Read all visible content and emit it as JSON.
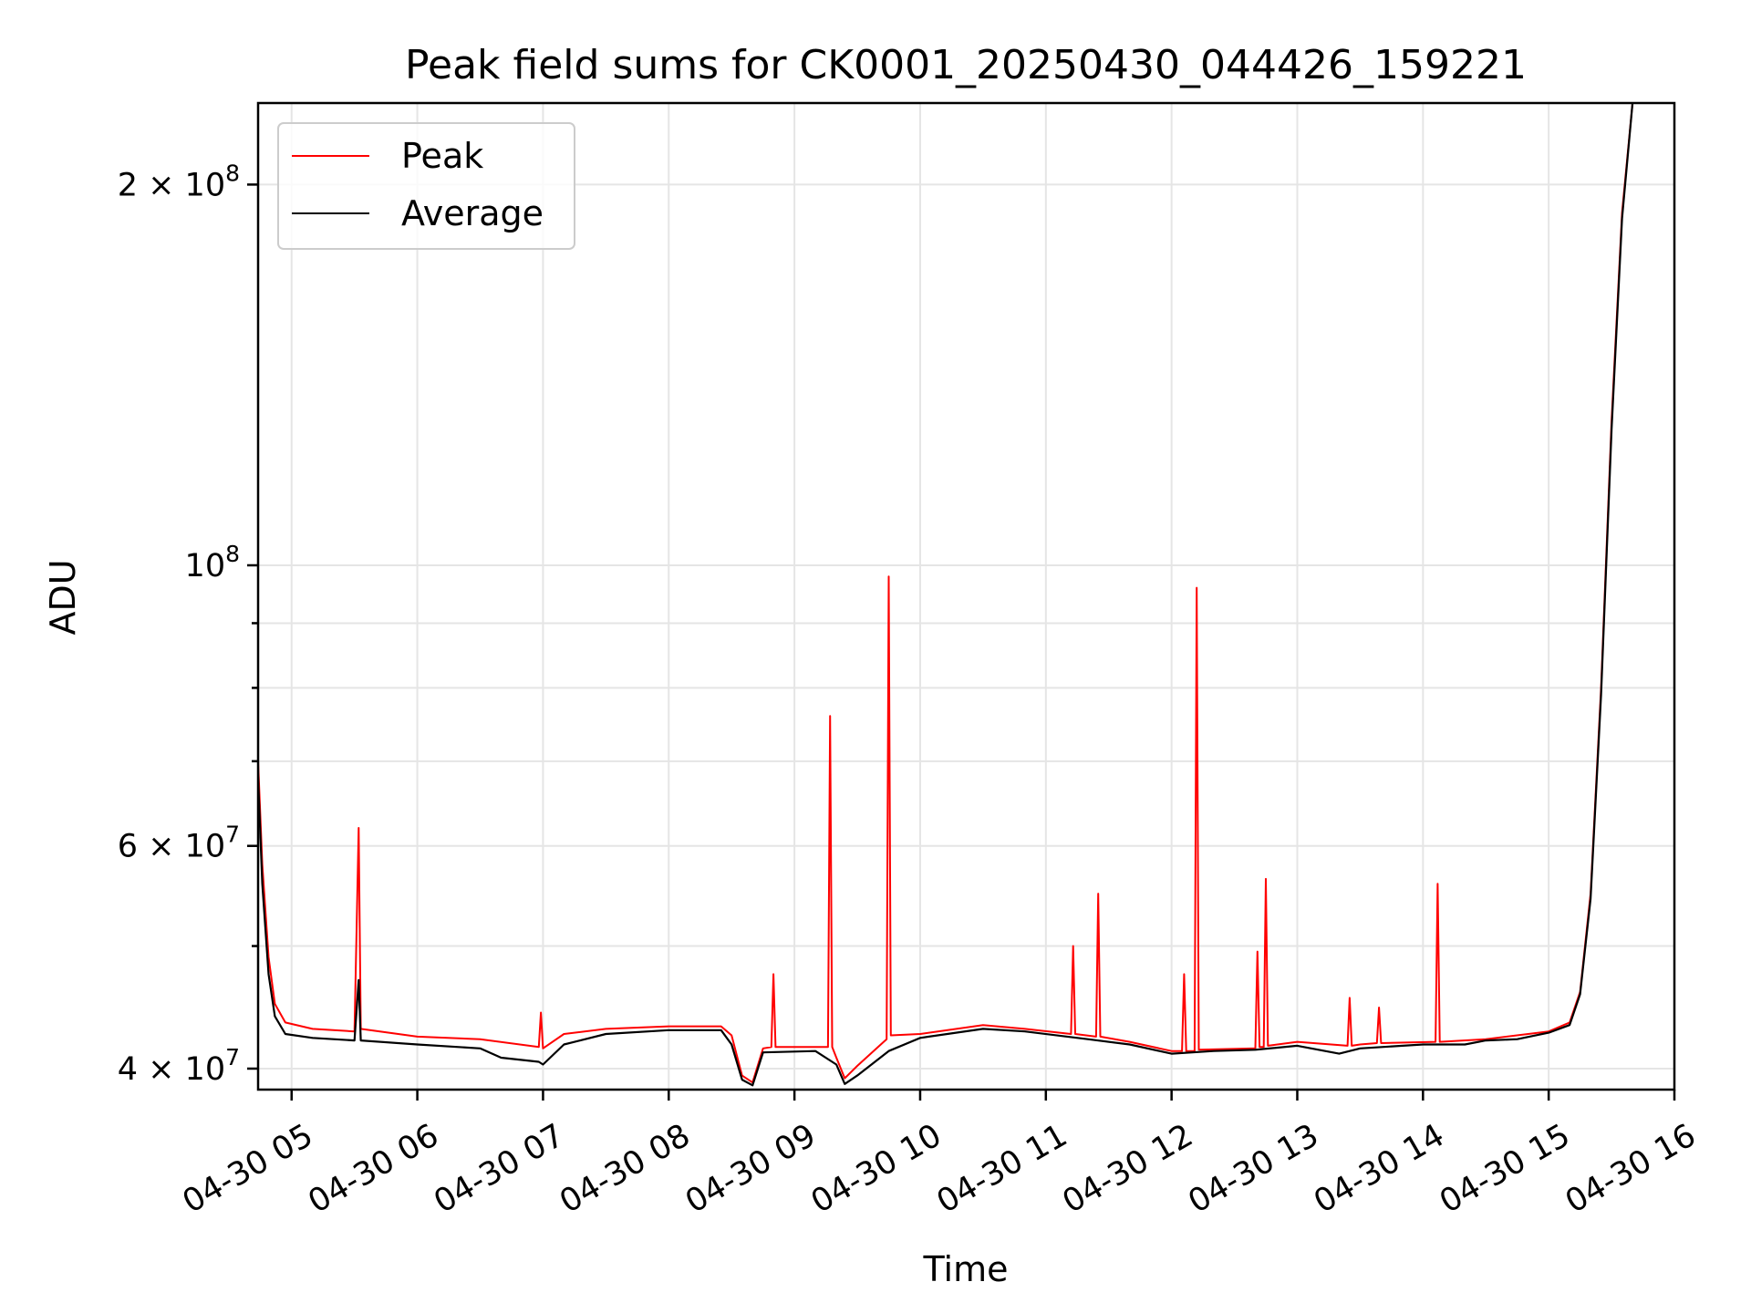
{
  "chart_data": {
    "type": "line",
    "title": "Peak field sums for CK0001_20250430_044426_159221",
    "xlabel": "Time",
    "ylabel": "ADU",
    "yscale": "log",
    "xlim": [
      "2025-04-30 04:44",
      "2025-04-30 16:00"
    ],
    "ylim": [
      38500000,
      232000000
    ],
    "grid": true,
    "legend": "upper-left",
    "x_ticks": [
      {
        "label": "04-30 05",
        "value": "2025-04-30 05:00"
      },
      {
        "label": "04-30 06",
        "value": "2025-04-30 06:00"
      },
      {
        "label": "04-30 07",
        "value": "2025-04-30 07:00"
      },
      {
        "label": "04-30 08",
        "value": "2025-04-30 08:00"
      },
      {
        "label": "04-30 09",
        "value": "2025-04-30 09:00"
      },
      {
        "label": "04-30 10",
        "value": "2025-04-30 10:00"
      },
      {
        "label": "04-30 11",
        "value": "2025-04-30 11:00"
      },
      {
        "label": "04-30 12",
        "value": "2025-04-30 12:00"
      },
      {
        "label": "04-30 13",
        "value": "2025-04-30 13:00"
      },
      {
        "label": "04-30 14",
        "value": "2025-04-30 14:00"
      },
      {
        "label": "04-30 15",
        "value": "2025-04-30 15:00"
      },
      {
        "label": "04-30 16",
        "value": "2025-04-30 16:00"
      }
    ],
    "y_major_ticks": [
      {
        "value": 40000000,
        "mantissa": "4",
        "exp": "7"
      },
      {
        "value": 60000000,
        "mantissa": "6",
        "exp": "7"
      },
      {
        "value": 100000000,
        "mantissa": "",
        "exp": "8"
      },
      {
        "value": 200000000,
        "mantissa": "2",
        "exp": "8"
      }
    ],
    "y_minor_gridlines": [
      50000000,
      70000000,
      80000000,
      90000000
    ],
    "series": [
      {
        "name": "Peak",
        "color": "#ff0000",
        "points": [
          [
            "2025-04-30 04:44",
            70000000
          ],
          [
            "2025-04-30 04:46",
            58000000
          ],
          [
            "2025-04-30 04:49",
            49000000
          ],
          [
            "2025-04-30 04:52",
            45000000
          ],
          [
            "2025-04-30 04:57",
            43500000
          ],
          [
            "2025-04-30 05:10",
            43000000
          ],
          [
            "2025-04-30 05:30",
            42800000
          ],
          [
            "2025-04-30 05:32",
            62000000
          ],
          [
            "2025-04-30 05:33",
            43000000
          ],
          [
            "2025-04-30 06:00",
            42400000
          ],
          [
            "2025-04-30 06:30",
            42200000
          ],
          [
            "2025-04-30 06:58",
            41600000
          ],
          [
            "2025-04-30 06:59",
            44300000
          ],
          [
            "2025-04-30 07:00",
            41500000
          ],
          [
            "2025-04-30 07:10",
            42600000
          ],
          [
            "2025-04-30 07:30",
            43000000
          ],
          [
            "2025-04-30 08:00",
            43200000
          ],
          [
            "2025-04-30 08:25",
            43200000
          ],
          [
            "2025-04-30 08:30",
            42500000
          ],
          [
            "2025-04-30 08:35",
            39500000
          ],
          [
            "2025-04-30 08:40",
            39000000
          ],
          [
            "2025-04-30 08:45",
            41500000
          ],
          [
            "2025-04-30 08:49",
            41600000
          ],
          [
            "2025-04-30 08:50",
            47500000
          ],
          [
            "2025-04-30 08:51",
            41600000
          ],
          [
            "2025-04-30 09:16",
            41600000
          ],
          [
            "2025-04-30 09:17",
            76000000
          ],
          [
            "2025-04-30 09:18",
            41600000
          ],
          [
            "2025-04-30 09:20",
            40800000
          ],
          [
            "2025-04-30 09:24",
            39300000
          ],
          [
            "2025-04-30 09:30",
            40200000
          ],
          [
            "2025-04-30 09:44",
            42200000
          ],
          [
            "2025-04-30 09:45",
            98000000
          ],
          [
            "2025-04-30 09:46",
            42500000
          ],
          [
            "2025-04-30 10:00",
            42600000
          ],
          [
            "2025-04-30 10:30",
            43300000
          ],
          [
            "2025-04-30 10:50",
            43000000
          ],
          [
            "2025-04-30 11:12",
            42600000
          ],
          [
            "2025-04-30 11:13",
            50000000
          ],
          [
            "2025-04-30 11:14",
            42600000
          ],
          [
            "2025-04-30 11:24",
            42400000
          ],
          [
            "2025-04-30 11:25",
            55000000
          ],
          [
            "2025-04-30 11:26",
            42400000
          ],
          [
            "2025-04-30 11:40",
            42000000
          ],
          [
            "2025-04-30 12:00",
            41300000
          ],
          [
            "2025-04-30 12:05",
            41300000
          ],
          [
            "2025-04-30 12:06",
            47500000
          ],
          [
            "2025-04-30 12:07",
            41300000
          ],
          [
            "2025-04-30 12:11",
            41300000
          ],
          [
            "2025-04-30 12:12",
            96000000
          ],
          [
            "2025-04-30 12:13",
            41400000
          ],
          [
            "2025-04-30 12:40",
            41500000
          ],
          [
            "2025-04-30 12:41",
            49500000
          ],
          [
            "2025-04-30 12:42",
            41600000
          ],
          [
            "2025-04-30 12:44",
            41600000
          ],
          [
            "2025-04-30 12:45",
            56500000
          ],
          [
            "2025-04-30 12:46",
            41700000
          ],
          [
            "2025-04-30 13:00",
            42000000
          ],
          [
            "2025-04-30 13:24",
            41700000
          ],
          [
            "2025-04-30 13:25",
            45500000
          ],
          [
            "2025-04-30 13:26",
            41700000
          ],
          [
            "2025-04-30 13:30",
            41800000
          ],
          [
            "2025-04-30 13:38",
            41900000
          ],
          [
            "2025-04-30 13:39",
            44700000
          ],
          [
            "2025-04-30 13:40",
            41900000
          ],
          [
            "2025-04-30 14:06",
            42000000
          ],
          [
            "2025-04-30 14:07",
            56000000
          ],
          [
            "2025-04-30 14:08",
            42000000
          ],
          [
            "2025-04-30 14:30",
            42200000
          ],
          [
            "2025-04-30 15:00",
            42800000
          ],
          [
            "2025-04-30 15:10",
            43500000
          ],
          [
            "2025-04-30 15:15",
            46000000
          ],
          [
            "2025-04-30 15:20",
            55000000
          ],
          [
            "2025-04-30 15:25",
            80000000
          ],
          [
            "2025-04-30 15:30",
            130000000
          ],
          [
            "2025-04-30 15:35",
            190000000
          ],
          [
            "2025-04-30 15:40",
            232000000
          ]
        ]
      },
      {
        "name": "Average",
        "color": "#000000",
        "points": [
          [
            "2025-04-30 04:44",
            68000000
          ],
          [
            "2025-04-30 04:46",
            56000000
          ],
          [
            "2025-04-30 04:49",
            47500000
          ],
          [
            "2025-04-30 04:52",
            44000000
          ],
          [
            "2025-04-30 04:57",
            42600000
          ],
          [
            "2025-04-30 05:10",
            42300000
          ],
          [
            "2025-04-30 05:30",
            42100000
          ],
          [
            "2025-04-30 05:32",
            47000000
          ],
          [
            "2025-04-30 05:33",
            42100000
          ],
          [
            "2025-04-30 06:00",
            41800000
          ],
          [
            "2025-04-30 06:30",
            41500000
          ],
          [
            "2025-04-30 06:40",
            40800000
          ],
          [
            "2025-04-30 06:58",
            40500000
          ],
          [
            "2025-04-30 07:00",
            40300000
          ],
          [
            "2025-04-30 07:10",
            41800000
          ],
          [
            "2025-04-30 07:30",
            42600000
          ],
          [
            "2025-04-30 08:00",
            42900000
          ],
          [
            "2025-04-30 08:25",
            42900000
          ],
          [
            "2025-04-30 08:30",
            41800000
          ],
          [
            "2025-04-30 08:35",
            39200000
          ],
          [
            "2025-04-30 08:40",
            38800000
          ],
          [
            "2025-04-30 08:45",
            41200000
          ],
          [
            "2025-04-30 09:10",
            41300000
          ],
          [
            "2025-04-30 09:20",
            40300000
          ],
          [
            "2025-04-30 09:24",
            38900000
          ],
          [
            "2025-04-30 09:30",
            39500000
          ],
          [
            "2025-04-30 09:45",
            41300000
          ],
          [
            "2025-04-30 10:00",
            42300000
          ],
          [
            "2025-04-30 10:30",
            43000000
          ],
          [
            "2025-04-30 10:50",
            42800000
          ],
          [
            "2025-04-30 11:20",
            42200000
          ],
          [
            "2025-04-30 11:40",
            41800000
          ],
          [
            "2025-04-30 12:00",
            41100000
          ],
          [
            "2025-04-30 12:20",
            41300000
          ],
          [
            "2025-04-30 12:40",
            41400000
          ],
          [
            "2025-04-30 13:00",
            41700000
          ],
          [
            "2025-04-30 13:20",
            41100000
          ],
          [
            "2025-04-30 13:30",
            41500000
          ],
          [
            "2025-04-30 14:00",
            41800000
          ],
          [
            "2025-04-30 14:20",
            41800000
          ],
          [
            "2025-04-30 14:30",
            42100000
          ],
          [
            "2025-04-30 14:45",
            42200000
          ],
          [
            "2025-04-30 15:00",
            42700000
          ],
          [
            "2025-04-30 15:10",
            43300000
          ],
          [
            "2025-04-30 15:15",
            45800000
          ],
          [
            "2025-04-30 15:20",
            54500000
          ],
          [
            "2025-04-30 15:25",
            79000000
          ],
          [
            "2025-04-30 15:30",
            128000000
          ],
          [
            "2025-04-30 15:35",
            188000000
          ],
          [
            "2025-04-30 15:40",
            232000000
          ]
        ]
      }
    ]
  }
}
